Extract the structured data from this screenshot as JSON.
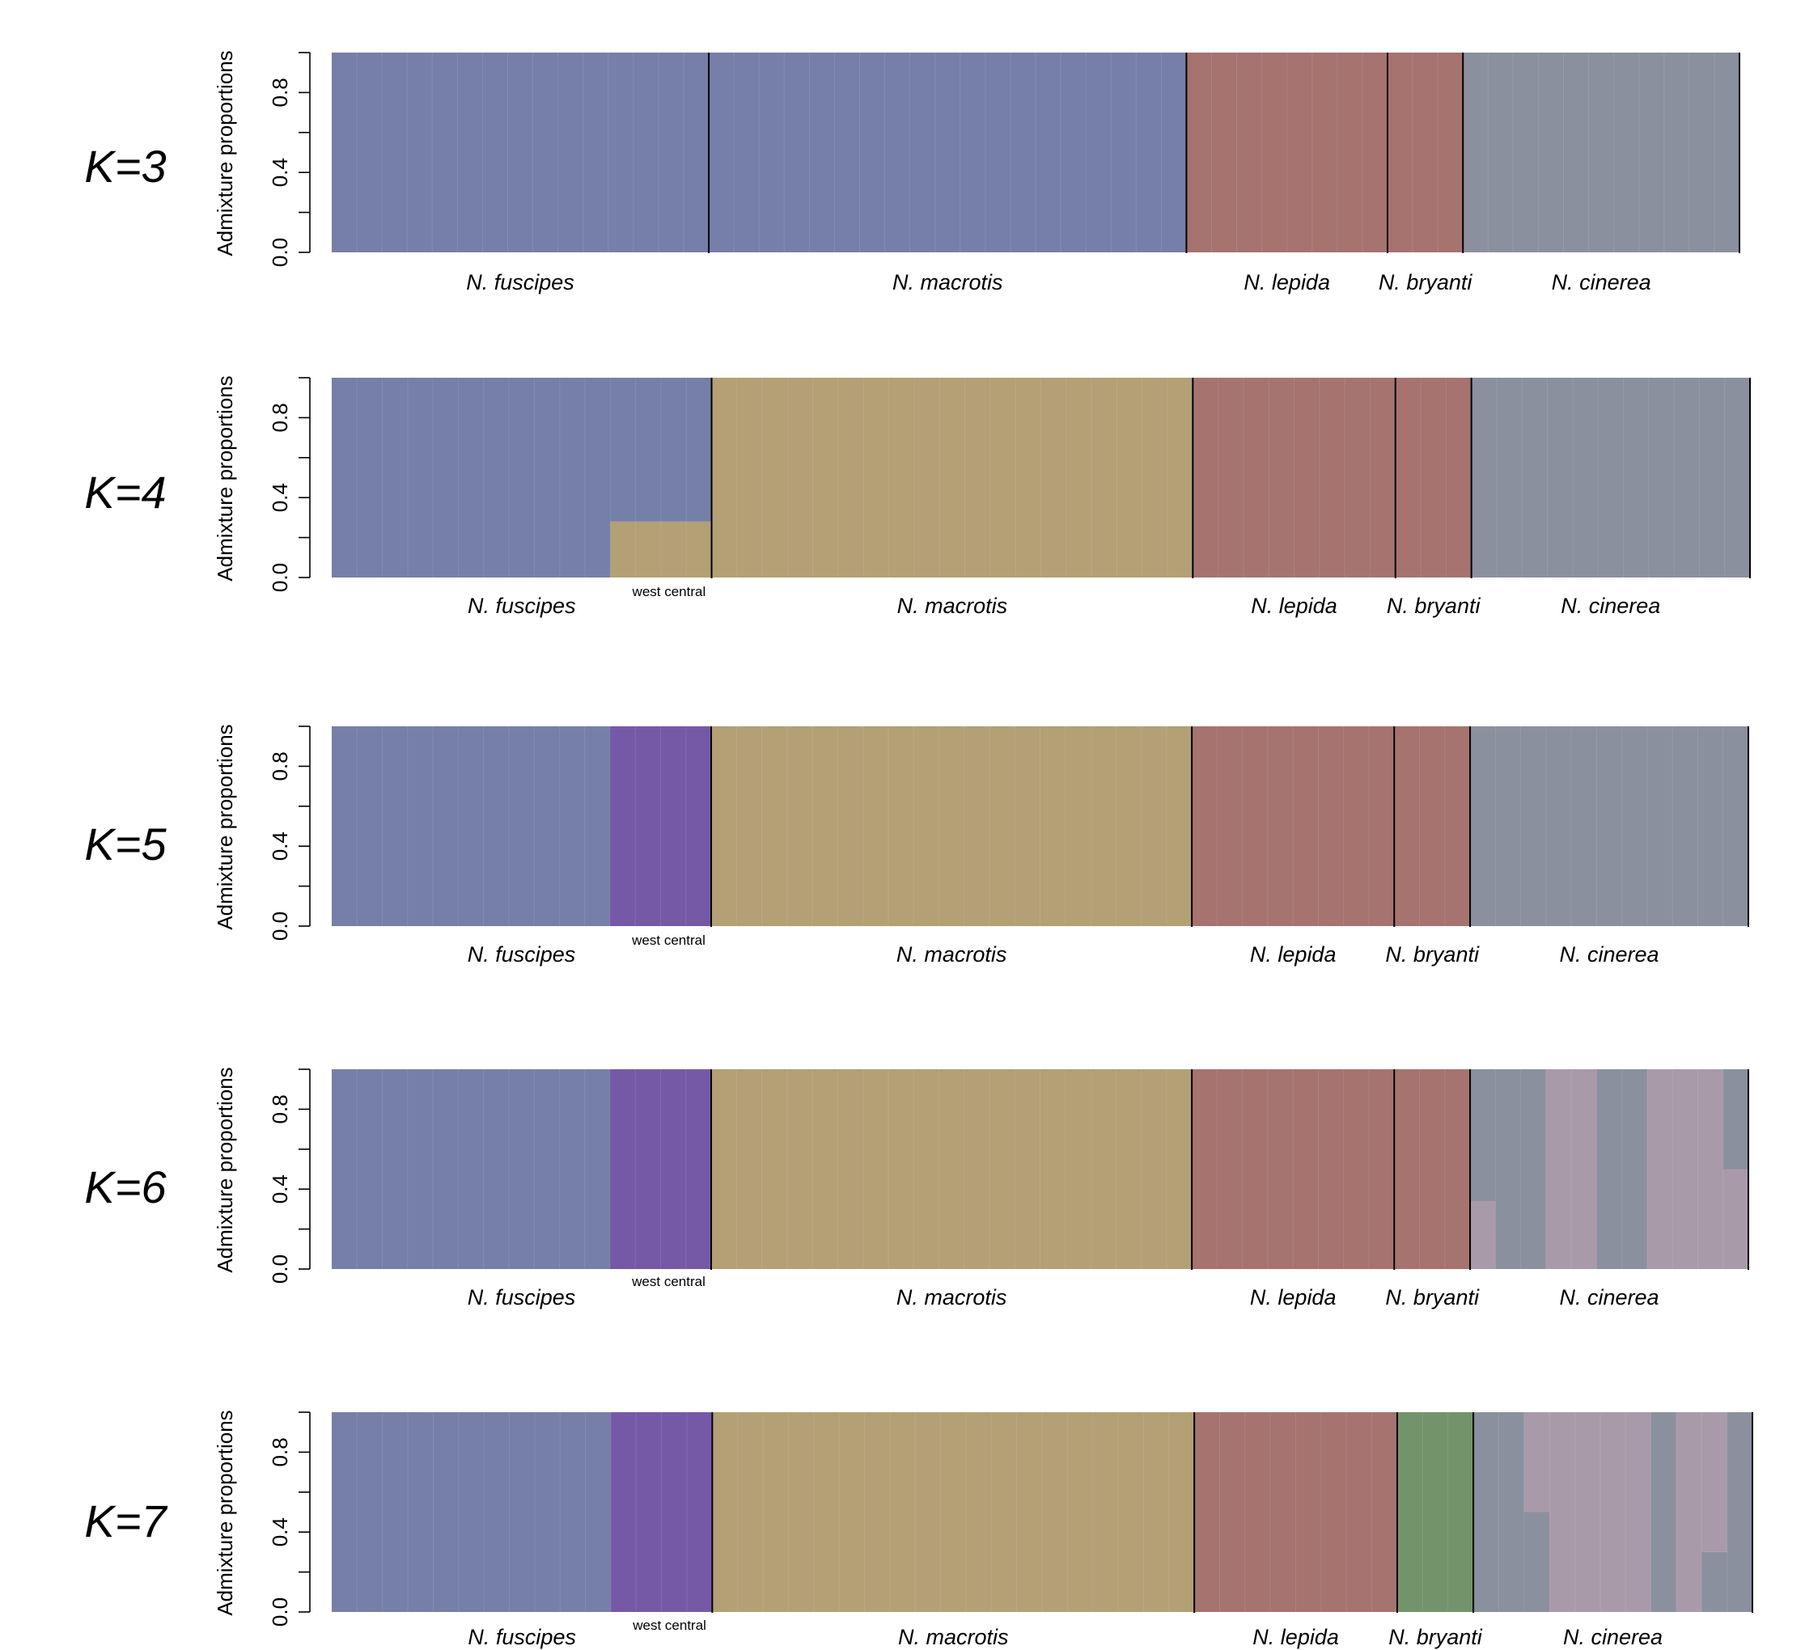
{
  "chart_data": {
    "type": "bar",
    "subtype": "stacked-admixture",
    "ylabel": "Admixture proportions",
    "ylim": [
      0,
      1
    ],
    "yticks": [
      "0.0",
      "0.4",
      "0.8"
    ],
    "colors": {
      "fuscipes": "#767fa8",
      "lepida": "#a6736f",
      "cinerea": "#8a909e",
      "macrotis": "#b3a074",
      "westcentral": "#7659a6",
      "cinerea2": "#a99aaa",
      "bryanti": "#72946a"
    },
    "panels": [
      {
        "label": "K=3",
        "groups": [
          {
            "name": "N. fuscipes",
            "n": 15
          },
          {
            "name": "N. macrotis",
            "n": 19
          },
          {
            "name": "N. lepida",
            "n": 8
          },
          {
            "name": "N. bryanti",
            "n": 3
          },
          {
            "name": "N. cinerea",
            "n": 11
          }
        ],
        "blocks": [
          {
            "n": 34,
            "props": [
              [
                "fuscipes",
                1
              ]
            ]
          },
          {
            "n": 11,
            "props": [
              [
                "lepida",
                1
              ]
            ]
          },
          {
            "n": 11,
            "props": [
              [
                "cinerea",
                1
              ]
            ]
          }
        ]
      },
      {
        "label": "K=4",
        "subgroup": "west central",
        "groups": [
          {
            "name": "N. fuscipes",
            "n": 15
          },
          {
            "name": "N. macrotis",
            "n": 19
          },
          {
            "name": "N. lepida",
            "n": 8
          },
          {
            "name": "N. bryanti",
            "n": 3
          },
          {
            "name": "N. cinerea",
            "n": 11
          }
        ],
        "blocks": [
          {
            "n": 11,
            "props": [
              [
                "fuscipes",
                1
              ]
            ]
          },
          {
            "n": 4,
            "props": [
              [
                "macrotis",
                0.28
              ],
              [
                "fuscipes",
                0.72
              ]
            ]
          },
          {
            "n": 19,
            "props": [
              [
                "macrotis",
                1
              ]
            ]
          },
          {
            "n": 11,
            "props": [
              [
                "lepida",
                1
              ]
            ]
          },
          {
            "n": 11,
            "props": [
              [
                "cinerea",
                1
              ]
            ]
          }
        ]
      },
      {
        "label": "K=5",
        "subgroup": "west central",
        "groups": [
          {
            "name": "N. fuscipes",
            "n": 15
          },
          {
            "name": "N. macrotis",
            "n": 19
          },
          {
            "name": "N. lepida",
            "n": 8
          },
          {
            "name": "N. bryanti",
            "n": 3
          },
          {
            "name": "N. cinerea",
            "n": 11
          }
        ],
        "blocks": [
          {
            "n": 11,
            "props": [
              [
                "fuscipes",
                1
              ]
            ]
          },
          {
            "n": 4,
            "props": [
              [
                "westcentral",
                1
              ]
            ]
          },
          {
            "n": 19,
            "props": [
              [
                "macrotis",
                1
              ]
            ]
          },
          {
            "n": 11,
            "props": [
              [
                "lepida",
                1
              ]
            ]
          },
          {
            "n": 11,
            "props": [
              [
                "cinerea",
                1
              ]
            ]
          }
        ]
      },
      {
        "label": "K=6",
        "subgroup": "west central",
        "groups": [
          {
            "name": "N. fuscipes",
            "n": 15
          },
          {
            "name": "N. macrotis",
            "n": 19
          },
          {
            "name": "N. lepida",
            "n": 8
          },
          {
            "name": "N. bryanti",
            "n": 3
          },
          {
            "name": "N. cinerea",
            "n": 11
          }
        ],
        "blocks": [
          {
            "n": 11,
            "props": [
              [
                "fuscipes",
                1
              ]
            ]
          },
          {
            "n": 4,
            "props": [
              [
                "westcentral",
                1
              ]
            ]
          },
          {
            "n": 19,
            "props": [
              [
                "macrotis",
                1
              ]
            ]
          },
          {
            "n": 11,
            "props": [
              [
                "lepida",
                1
              ]
            ]
          },
          {
            "n": 1,
            "props": [
              [
                "cinerea2",
                0.34
              ],
              [
                "cinerea",
                0.66
              ]
            ]
          },
          {
            "n": 2,
            "props": [
              [
                "cinerea",
                1
              ]
            ]
          },
          {
            "n": 2,
            "props": [
              [
                "cinerea2",
                1
              ]
            ]
          },
          {
            "n": 2,
            "props": [
              [
                "cinerea",
                1
              ]
            ]
          },
          {
            "n": 3,
            "props": [
              [
                "cinerea2",
                1
              ]
            ]
          },
          {
            "n": 1,
            "props": [
              [
                "cinerea2",
                0.5
              ],
              [
                "cinerea",
                0.5
              ]
            ]
          }
        ]
      },
      {
        "label": "K=7",
        "subgroup": "west central",
        "groups": [
          {
            "name": "N. fuscipes",
            "n": 15
          },
          {
            "name": "N. macrotis",
            "n": 19
          },
          {
            "name": "N. lepida",
            "n": 8
          },
          {
            "name": "N. bryanti",
            "n": 3
          },
          {
            "name": "N. cinerea",
            "n": 11
          }
        ],
        "blocks": [
          {
            "n": 11,
            "props": [
              [
                "fuscipes",
                1
              ]
            ]
          },
          {
            "n": 4,
            "props": [
              [
                "westcentral",
                1
              ]
            ]
          },
          {
            "n": 19,
            "props": [
              [
                "macrotis",
                1
              ]
            ]
          },
          {
            "n": 8,
            "props": [
              [
                "lepida",
                1
              ]
            ]
          },
          {
            "n": 3,
            "props": [
              [
                "bryanti",
                1
              ]
            ]
          },
          {
            "n": 2,
            "props": [
              [
                "cinerea",
                1
              ]
            ]
          },
          {
            "n": 1,
            "props": [
              [
                "cinerea",
                0.5
              ],
              [
                "cinerea2",
                0.5
              ]
            ]
          },
          {
            "n": 4,
            "props": [
              [
                "cinerea2",
                1
              ]
            ]
          },
          {
            "n": 1,
            "props": [
              [
                "cinerea",
                1
              ]
            ]
          },
          {
            "n": 1,
            "props": [
              [
                "cinerea2",
                1
              ]
            ]
          },
          {
            "n": 1,
            "props": [
              [
                "cinerea",
                0.3
              ],
              [
                "cinerea2",
                0.7
              ]
            ]
          },
          {
            "n": 1,
            "props": [
              [
                "cinerea",
                1
              ]
            ]
          }
        ]
      }
    ]
  }
}
